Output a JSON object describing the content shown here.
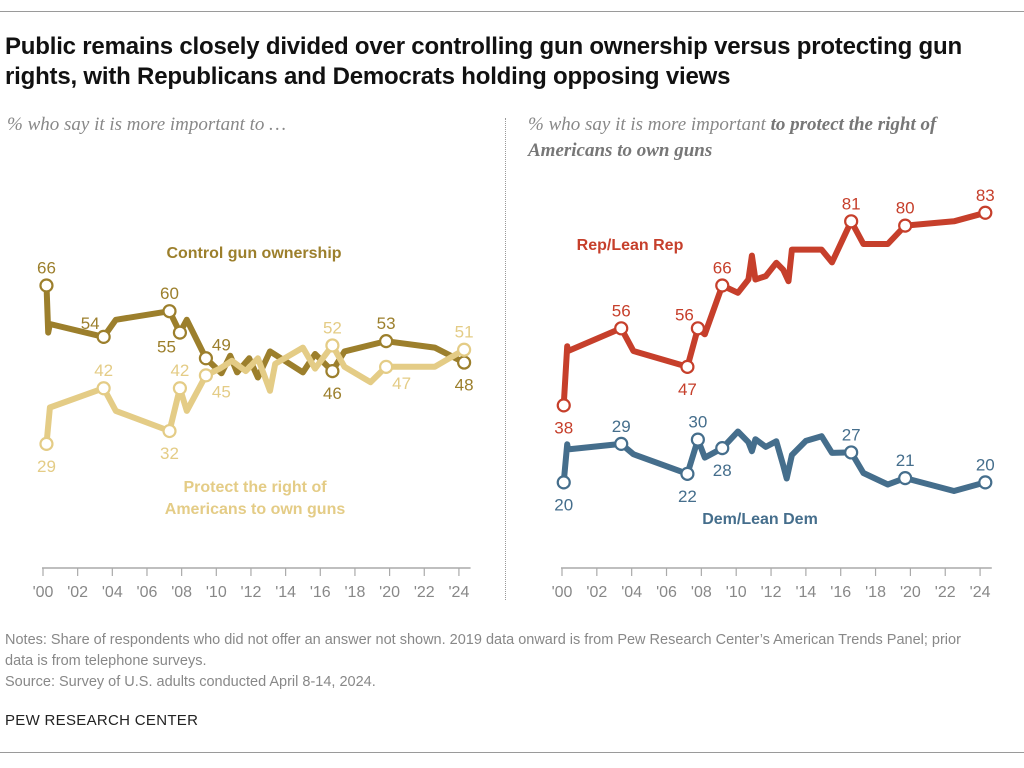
{
  "title": "Public remains closely divided over controlling gun ownership versus protecting gun rights, with Republicans and Democrats holding opposing views",
  "left_subtitle": "% who say it is more important to …",
  "right_subtitle": {
    "prefix": "% who say it is more important ",
    "emphasis": "to protect the right of Americans to own guns"
  },
  "notes": [
    "Notes: Share of respondents who did not offer an answer not shown. 2019 data onward is from Pew Research Center’s American Trends Panel; prior data is from telephone surveys.",
    "Source: Survey of U.S. adults conducted April 8-14, 2024."
  ],
  "brand": "PEW RESEARCH CENTER",
  "chart_data": [
    {
      "type": "line",
      "title": "",
      "xlabel": "",
      "ylabel": "",
      "xlim": [
        2000,
        2024.5
      ],
      "ylim": [
        0,
        100
      ],
      "x_ticks": [
        "'00",
        "'02",
        "'04",
        "'06",
        "'08",
        "'10",
        "'12",
        "'14",
        "'16",
        "'18",
        "'20",
        "'22",
        "'24"
      ],
      "grid": false,
      "series": [
        {
          "name": "Control gun ownership",
          "color": "#9c7f2c",
          "points": [
            [
              2000.2,
              66
            ],
            [
              2000.3,
              55
            ],
            [
              2000.4,
              57
            ],
            [
              2003.5,
              54
            ],
            [
              2004.2,
              58
            ],
            [
              2007.3,
              60
            ],
            [
              2007.9,
              55
            ],
            [
              2008.3,
              58
            ],
            [
              2009.4,
              49
            ],
            [
              2010.3,
              45.5
            ],
            [
              2010.8,
              49.6
            ],
            [
              2011.2,
              45.7
            ],
            [
              2011.9,
              49
            ],
            [
              2012.4,
              44.5
            ],
            [
              2013.1,
              50.6
            ],
            [
              2015.0,
              45.7
            ],
            [
              2015.7,
              50
            ],
            [
              2016.7,
              46
            ],
            [
              2017.4,
              50.6
            ],
            [
              2019.8,
              53
            ],
            [
              2022.6,
              51.5
            ],
            [
              2024.3,
              48
            ]
          ],
          "labeled": [
            {
              "x": 2000.2,
              "y": 66,
              "pos": "above"
            },
            {
              "x": 2003.5,
              "y": 54,
              "pos": "above-left"
            },
            {
              "x": 2007.3,
              "y": 60,
              "pos": "above"
            },
            {
              "x": 2007.9,
              "y": 55,
              "pos": "below-left"
            },
            {
              "x": 2009.4,
              "y": 49,
              "pos": "above-right"
            },
            {
              "x": 2016.7,
              "y": 46,
              "pos": "below"
            },
            {
              "x": 2019.8,
              "y": 53,
              "pos": "above"
            },
            {
              "x": 2024.3,
              "y": 48,
              "pos": "below"
            }
          ]
        },
        {
          "name": "Protect the right of Americans to own guns",
          "color": "#e4cc86",
          "points": [
            [
              2000.2,
              29
            ],
            [
              2000.4,
              37.5
            ],
            [
              2003.5,
              42
            ],
            [
              2004.2,
              36.7
            ],
            [
              2007.3,
              32
            ],
            [
              2007.9,
              42
            ],
            [
              2008.3,
              36.7
            ],
            [
              2009.4,
              45
            ],
            [
              2010.2,
              46.6
            ],
            [
              2010.9,
              48.4
            ],
            [
              2011.7,
              46
            ],
            [
              2012.4,
              49
            ],
            [
              2013.1,
              41.4
            ],
            [
              2013.4,
              47.7
            ],
            [
              2015.0,
              51.5
            ],
            [
              2015.7,
              46.6
            ],
            [
              2016.7,
              52
            ],
            [
              2017.4,
              47
            ],
            [
              2018.9,
              43.4
            ],
            [
              2019.8,
              47
            ],
            [
              2022.6,
              47
            ],
            [
              2024.3,
              51
            ]
          ],
          "labeled": [
            {
              "x": 2000.2,
              "y": 29,
              "pos": "below"
            },
            {
              "x": 2003.5,
              "y": 42,
              "pos": "above"
            },
            {
              "x": 2007.3,
              "y": 32,
              "pos": "below"
            },
            {
              "x": 2007.9,
              "y": 42,
              "pos": "above"
            },
            {
              "x": 2009.4,
              "y": 45,
              "pos": "below-right"
            },
            {
              "x": 2016.7,
              "y": 52,
              "pos": "above"
            },
            {
              "x": 2019.8,
              "y": 47,
              "pos": "below-right"
            },
            {
              "x": 2024.3,
              "y": 51,
              "pos": "above"
            }
          ]
        }
      ]
    },
    {
      "type": "line",
      "title": "",
      "xlabel": "",
      "ylabel": "",
      "xlim": [
        2000,
        2024.5
      ],
      "ylim": [
        0,
        100
      ],
      "x_ticks": [
        "'00",
        "'02",
        "'04",
        "'06",
        "'08",
        "'10",
        "'12",
        "'14",
        "'16",
        "'18",
        "'20",
        "'22",
        "'24"
      ],
      "grid": false,
      "series": [
        {
          "name": "Rep/Lean Rep",
          "color": "#c63f2b",
          "points": [
            [
              2000.1,
              38
            ],
            [
              2000.3,
              51.8
            ],
            [
              2000.35,
              50.7
            ],
            [
              2003.4,
              56
            ],
            [
              2004.1,
              50.7
            ],
            [
              2007.2,
              47
            ],
            [
              2007.8,
              56
            ],
            [
              2008.2,
              54.6
            ],
            [
              2009.2,
              66
            ],
            [
              2010.1,
              64.3
            ],
            [
              2010.7,
              67.4
            ],
            [
              2010.9,
              73
            ],
            [
              2011.1,
              67.4
            ],
            [
              2011.7,
              68.2
            ],
            [
              2012.3,
              71.3
            ],
            [
              2012.7,
              69.7
            ],
            [
              2013.0,
              67
            ],
            [
              2013.2,
              74.4
            ],
            [
              2014.9,
              74.4
            ],
            [
              2015.5,
              71.4
            ],
            [
              2016.6,
              81
            ],
            [
              2017.3,
              75.7
            ],
            [
              2018.7,
              75.7
            ],
            [
              2019.7,
              80
            ],
            [
              2022.5,
              81
            ],
            [
              2024.3,
              83
            ]
          ],
          "labeled": [
            {
              "x": 2000.1,
              "y": 38,
              "pos": "below"
            },
            {
              "x": 2003.4,
              "y": 56,
              "pos": "above"
            },
            {
              "x": 2007.2,
              "y": 47,
              "pos": "below"
            },
            {
              "x": 2007.8,
              "y": 56,
              "pos": "above-left"
            },
            {
              "x": 2009.2,
              "y": 66,
              "pos": "above"
            },
            {
              "x": 2016.6,
              "y": 81,
              "pos": "above"
            },
            {
              "x": 2019.7,
              "y": 80,
              "pos": "above"
            },
            {
              "x": 2024.3,
              "y": 83,
              "pos": "above"
            }
          ]
        },
        {
          "name": "Dem/Lean Dem",
          "color": "#456e8c",
          "points": [
            [
              2000.1,
              20
            ],
            [
              2000.3,
              28.9
            ],
            [
              2000.35,
              27.7
            ],
            [
              2003.4,
              29
            ],
            [
              2004.1,
              26.6
            ],
            [
              2007.2,
              22
            ],
            [
              2007.8,
              30
            ],
            [
              2008.2,
              25.8
            ],
            [
              2009.2,
              28
            ],
            [
              2010.1,
              31.9
            ],
            [
              2010.7,
              29.4
            ],
            [
              2010.9,
              27.3
            ],
            [
              2011.1,
              30.1
            ],
            [
              2011.7,
              28.3
            ],
            [
              2012.3,
              29.6
            ],
            [
              2012.7,
              24
            ],
            [
              2012.9,
              20.9
            ],
            [
              2013.2,
              26.4
            ],
            [
              2014.0,
              29.7
            ],
            [
              2014.9,
              30.8
            ],
            [
              2015.5,
              26.9
            ],
            [
              2016.6,
              27
            ],
            [
              2017.3,
              22.2
            ],
            [
              2018.7,
              19.5
            ],
            [
              2019.7,
              21
            ],
            [
              2022.5,
              18
            ],
            [
              2024.3,
              20
            ]
          ],
          "labeled": [
            {
              "x": 2000.1,
              "y": 20,
              "pos": "below"
            },
            {
              "x": 2003.4,
              "y": 29,
              "pos": "above"
            },
            {
              "x": 2007.2,
              "y": 22,
              "pos": "below"
            },
            {
              "x": 2007.8,
              "y": 30,
              "pos": "above"
            },
            {
              "x": 2009.2,
              "y": 28,
              "pos": "below"
            },
            {
              "x": 2016.6,
              "y": 27,
              "pos": "above"
            },
            {
              "x": 2019.7,
              "y": 21,
              "pos": "above"
            },
            {
              "x": 2024.3,
              "y": 20,
              "pos": "above"
            }
          ]
        }
      ]
    }
  ]
}
